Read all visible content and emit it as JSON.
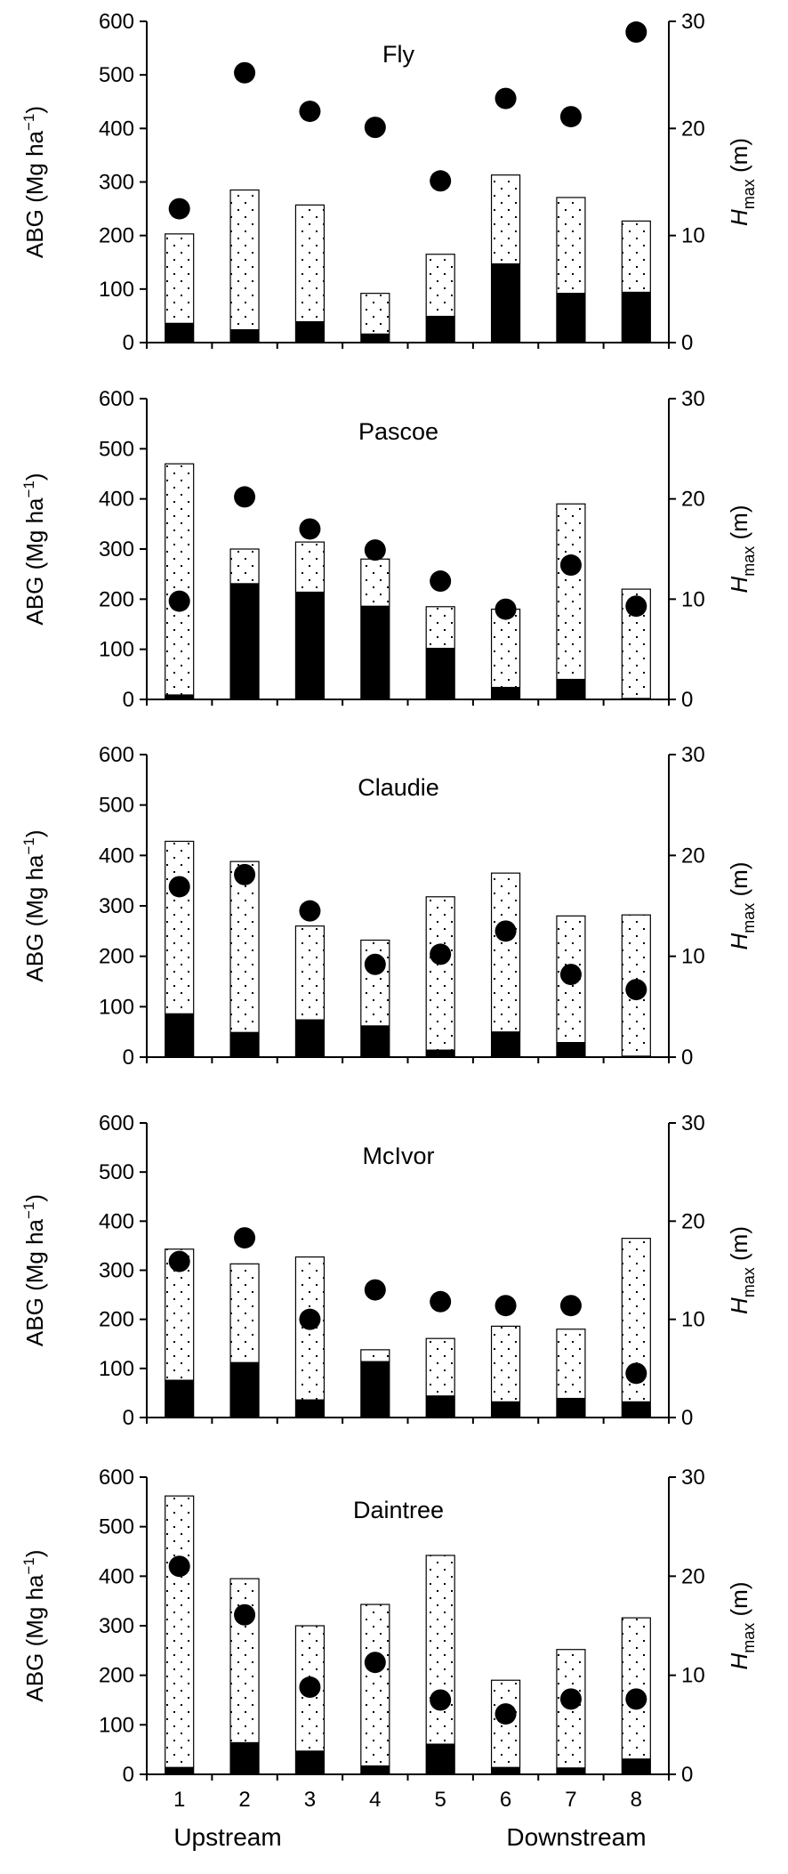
{
  "chart_data": [
    {
      "type": "bar",
      "title": "Fly",
      "categories": [
        "1",
        "2",
        "3",
        "4",
        "5",
        "6",
        "7",
        "8"
      ],
      "series": [
        {
          "values": [
            203,
            285,
            257,
            92,
            165,
            313,
            271,
            227
          ]
        },
        {
          "values": [
            37,
            25,
            40,
            17,
            50,
            148,
            93,
            95
          ]
        },
        {
          "values": [
            12.5,
            25.2,
            21.6,
            20.1,
            15.1,
            22.8,
            21.1,
            29.0
          ]
        }
      ],
      "ylabel": "ABG (Mg ha⁻¹)",
      "y2label": "Hmax (m)",
      "ylim": [
        0,
        600
      ],
      "y2lim": [
        0,
        30
      ],
      "yticks": [
        "0",
        "100",
        "200",
        "300",
        "400",
        "500",
        "600"
      ],
      "y2ticks": [
        "0",
        "10",
        "20",
        "30"
      ]
    },
    {
      "type": "bar",
      "title": "Pascoe",
      "categories": [
        "1",
        "2",
        "3",
        "4",
        "5",
        "6",
        "7",
        "8"
      ],
      "series": [
        {
          "values": [
            470,
            300,
            314,
            280,
            185,
            180,
            390,
            220
          ]
        },
        {
          "values": [
            10,
            232,
            215,
            187,
            103,
            25,
            41,
            3
          ]
        },
        {
          "values": [
            9.8,
            20.2,
            17.0,
            14.9,
            11.8,
            9.0,
            13.4,
            9.3
          ]
        }
      ],
      "ylabel": "ABG (Mg ha⁻¹)",
      "y2label": "Hmax (m)",
      "ylim": [
        0,
        600
      ],
      "y2lim": [
        0,
        30
      ],
      "yticks": [
        "0",
        "100",
        "200",
        "300",
        "400",
        "500",
        "600"
      ],
      "y2ticks": [
        "0",
        "10",
        "20",
        "30"
      ]
    },
    {
      "type": "bar",
      "title": "Claudie",
      "categories": [
        "1",
        "2",
        "3",
        "4",
        "5",
        "6",
        "7",
        "8"
      ],
      "series": [
        {
          "values": [
            428,
            388,
            260,
            232,
            318,
            365,
            280,
            282
          ]
        },
        {
          "values": [
            87,
            50,
            75,
            63,
            15,
            51,
            30,
            3
          ]
        },
        {
          "values": [
            16.9,
            18.1,
            14.5,
            9.2,
            10.2,
            12.5,
            8.2,
            6.7
          ]
        }
      ],
      "ylabel": "ABG (Mg ha⁻¹)",
      "y2label": "Hmax (m)",
      "ylim": [
        0,
        600
      ],
      "y2lim": [
        0,
        30
      ],
      "yticks": [
        "0",
        "100",
        "200",
        "300",
        "400",
        "500",
        "600"
      ],
      "y2ticks": [
        "0",
        "10",
        "20",
        "30"
      ]
    },
    {
      "type": "bar",
      "title": "McIvor",
      "categories": [
        "1",
        "2",
        "3",
        "4",
        "5",
        "6",
        "7",
        "8"
      ],
      "series": [
        {
          "values": [
            343,
            313,
            327,
            138,
            161,
            186,
            180,
            365
          ]
        },
        {
          "values": [
            77,
            113,
            37,
            115,
            45,
            33,
            40,
            33
          ]
        },
        {
          "values": [
            15.9,
            18.3,
            10.0,
            13.0,
            11.8,
            11.4,
            11.4,
            4.5
          ]
        }
      ],
      "ylabel": "ABG (Mg ha⁻¹)",
      "y2label": "Hmax (m)",
      "ylim": [
        0,
        600
      ],
      "y2lim": [
        0,
        30
      ],
      "yticks": [
        "0",
        "100",
        "200",
        "300",
        "400",
        "500",
        "600"
      ],
      "y2ticks": [
        "0",
        "10",
        "20",
        "30"
      ]
    },
    {
      "type": "bar",
      "title": "Daintree",
      "categories": [
        "1",
        "2",
        "3",
        "4",
        "5",
        "6",
        "7",
        "8"
      ],
      "series": [
        {
          "values": [
            562,
            395,
            300,
            343,
            442,
            190,
            252,
            316
          ]
        },
        {
          "values": [
            15,
            65,
            48,
            18,
            62,
            15,
            14,
            32
          ]
        },
        {
          "values": [
            21.0,
            16.1,
            8.8,
            11.3,
            7.5,
            6.1,
            7.6,
            7.6
          ]
        }
      ],
      "ylabel": "ABG (Mg ha⁻¹)",
      "y2label": "Hmax (m)",
      "ylim": [
        0,
        600
      ],
      "y2lim": [
        0,
        30
      ],
      "yticks": [
        "0",
        "100",
        "200",
        "300",
        "400",
        "500",
        "600"
      ],
      "y2ticks": [
        "0",
        "10",
        "20",
        "30"
      ]
    }
  ],
  "x_direction_labels": {
    "left": "Upstream",
    "right": "Downstream"
  },
  "colors": {
    "stem_fill": "#000000",
    "dot_fill": "#000000",
    "bar_outline": "#000000",
    "stipple": "#000000",
    "background": "#ffffff"
  }
}
